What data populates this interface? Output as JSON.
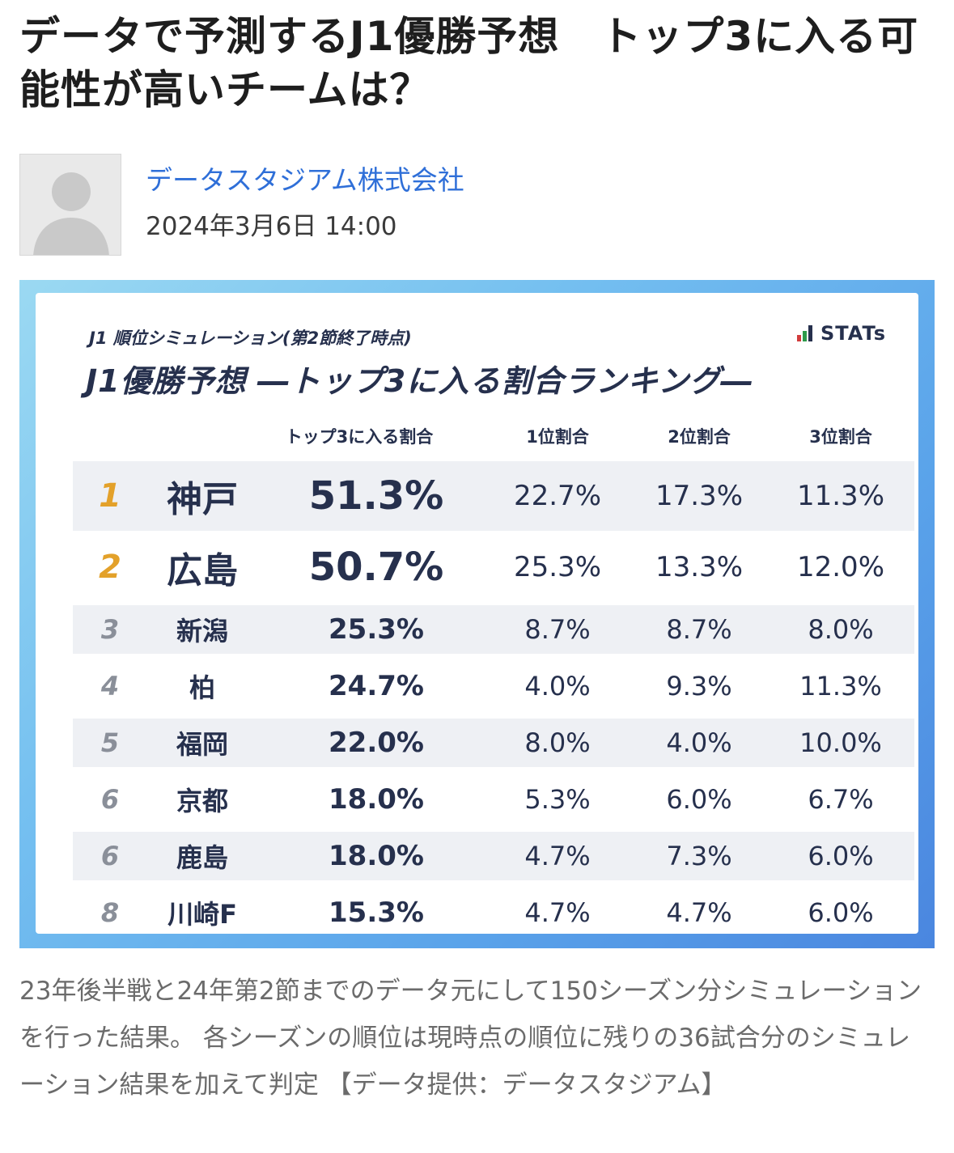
{
  "article": {
    "title": "データで予測するJ1優勝予想　トップ3に入る可能性が高いチームは？",
    "author": "データスタジアム株式会社",
    "date": "2024年3月6日 14:00",
    "caption": "23年後半戦と24年第2節までのデータ元にして150シーズン分シミュレーションを行った結果。 各シーズンの順位は現時点の順位に残りの36試合分のシミュレーション結果を加えて判定 【データ提供：データスタジアム】"
  },
  "icons": {
    "avatar": "person-silhouette-icon",
    "logo": "stats-bar-logo-icon"
  },
  "colors": {
    "title": "#1e1e1e",
    "author_link": "#2f6fd8",
    "caption": "#6b6b6b",
    "figure_navy": "#26304d",
    "rank_gold": "#e3a12a",
    "row_shade": "#eef0f4",
    "figure_bg_start": "#9bd9f2",
    "figure_bg_end": "#4a86df"
  },
  "figure": {
    "subtitle": "J1 順位シミュレーション(第2節終了時点)",
    "logo_text": "STATs",
    "title": "J1優勝予想 ―トップ3に入る割合ランキング―",
    "headers": {
      "top3": "トップ3に入る割合",
      "p1": "1位割合",
      "p2": "2位割合",
      "p3": "3位割合"
    },
    "rows": [
      {
        "rank": "1",
        "team": "神戸",
        "top3": "51.3%",
        "p1": "22.7%",
        "p2": "17.3%",
        "p3": "11.3%"
      },
      {
        "rank": "2",
        "team": "広島",
        "top3": "50.7%",
        "p1": "25.3%",
        "p2": "13.3%",
        "p3": "12.0%"
      },
      {
        "rank": "3",
        "team": "新潟",
        "top3": "25.3%",
        "p1": "8.7%",
        "p2": "8.7%",
        "p3": "8.0%"
      },
      {
        "rank": "4",
        "team": "柏",
        "top3": "24.7%",
        "p1": "4.0%",
        "p2": "9.3%",
        "p3": "11.3%"
      },
      {
        "rank": "5",
        "team": "福岡",
        "top3": "22.0%",
        "p1": "8.0%",
        "p2": "4.0%",
        "p3": "10.0%"
      },
      {
        "rank": "6",
        "team": "京都",
        "top3": "18.0%",
        "p1": "5.3%",
        "p2": "6.0%",
        "p3": "6.7%"
      },
      {
        "rank": "6",
        "team": "鹿島",
        "top3": "18.0%",
        "p1": "4.7%",
        "p2": "7.3%",
        "p3": "6.0%"
      },
      {
        "rank": "8",
        "team": "川崎F",
        "top3": "15.3%",
        "p1": "4.7%",
        "p2": "4.7%",
        "p3": "6.0%"
      }
    ]
  }
}
